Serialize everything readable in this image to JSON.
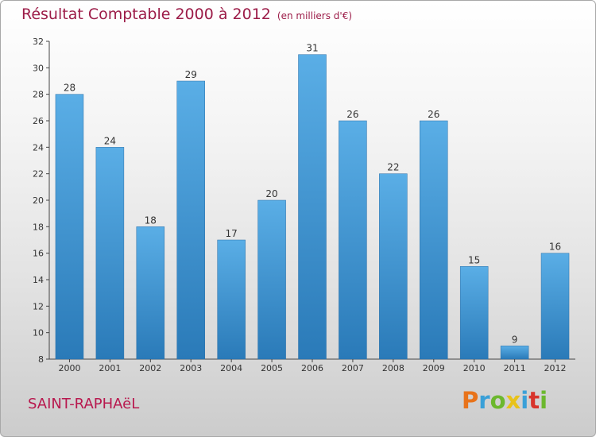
{
  "chart_data": {
    "type": "bar",
    "title": "Résultat Comptable 2000 à 2012",
    "subtitle": "(en milliers d'€)",
    "categories": [
      "2000",
      "2001",
      "2002",
      "2003",
      "2004",
      "2005",
      "2006",
      "2007",
      "2008",
      "2009",
      "2010",
      "2011",
      "2012"
    ],
    "values": [
      28,
      24,
      18,
      29,
      17,
      20,
      31,
      26,
      22,
      26,
      15,
      9,
      16
    ],
    "ylim": [
      8,
      32
    ],
    "yticks": [
      8,
      10,
      12,
      14,
      16,
      18,
      20,
      22,
      24,
      26,
      28,
      30,
      32
    ],
    "xlabel": "",
    "ylabel": "",
    "grid": false,
    "bar_color_top": "#5aaee6",
    "bar_color_bottom": "#2a7ab8"
  },
  "location": "SAINT-RAPHAëL",
  "brand": {
    "letters": [
      "P",
      "r",
      "o",
      "x",
      "i",
      "t",
      "i"
    ],
    "colors": [
      "#e8731a",
      "#3aa0d8",
      "#6cb82e",
      "#e8c21a",
      "#3aa0d8",
      "#d8342c",
      "#6cb82e"
    ]
  }
}
